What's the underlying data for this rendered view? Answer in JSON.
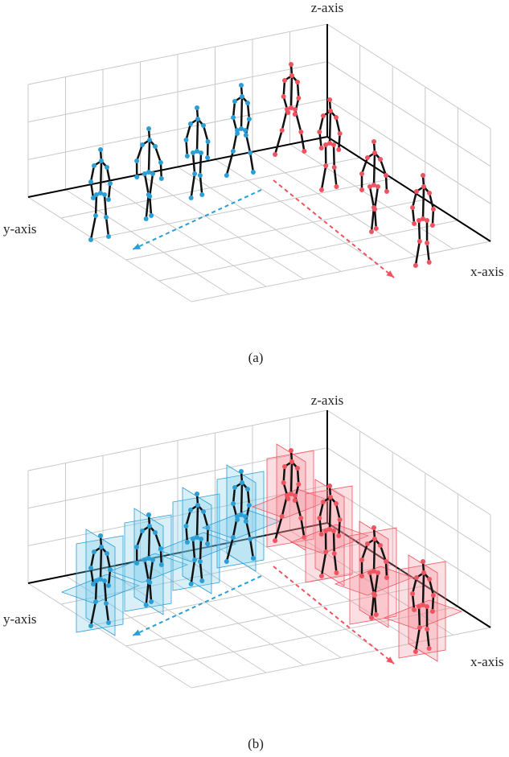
{
  "panels": [
    {
      "label": "(a)",
      "axes": {
        "z": "z-axis",
        "y": "y-axis",
        "x": "x-axis"
      }
    },
    {
      "label": "(b)",
      "axes": {
        "z": "z-axis",
        "y": "y-axis",
        "x": "x-axis"
      }
    }
  ]
}
